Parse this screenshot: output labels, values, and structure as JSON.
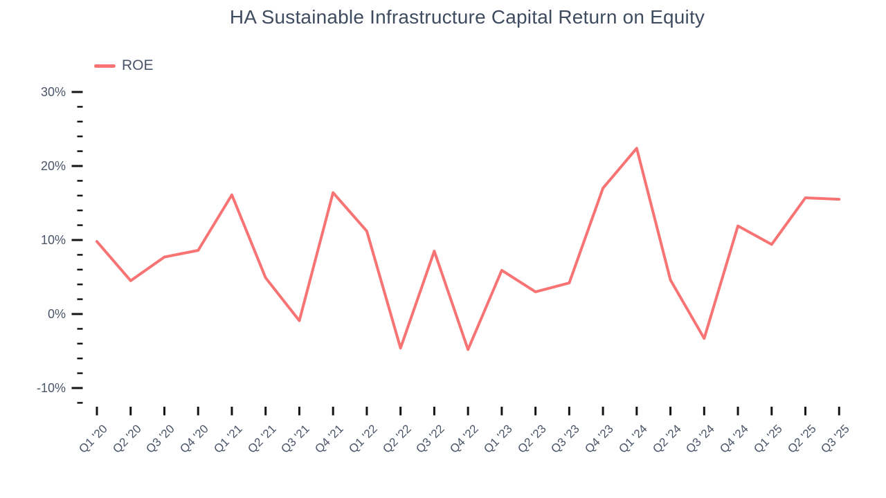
{
  "chart_data": {
    "type": "line",
    "title": "HA Sustainable Infrastructure Capital Return on Equity",
    "xlabel": "",
    "ylabel": "",
    "legend_position": "top-left",
    "grid": false,
    "categories": [
      "Q1 '20",
      "Q2 '20",
      "Q3 '20",
      "Q4 '20",
      "Q1 '21",
      "Q2 '21",
      "Q3 '21",
      "Q4 '21",
      "Q1 '22",
      "Q2 '22",
      "Q3 '22",
      "Q4 '22",
      "Q1 '23",
      "Q2 '23",
      "Q3 '23",
      "Q4 '23",
      "Q1 '24",
      "Q2 '24",
      "Q3 '24",
      "Q4 '24",
      "Q1 '25",
      "Q2 '25",
      "Q3 '25"
    ],
    "series": [
      {
        "name": "ROE",
        "values": [
          9.8,
          4.5,
          7.7,
          8.6,
          16.1,
          4.9,
          -0.9,
          16.4,
          11.2,
          -4.6,
          8.5,
          -4.8,
          5.9,
          3.0,
          4.2,
          17.0,
          22.4,
          4.6,
          -3.3,
          11.9,
          9.4,
          15.7,
          15.5
        ]
      }
    ],
    "ylim": [
      -12,
      30
    ],
    "y_major_ticks": [
      30,
      20,
      10,
      0,
      -10
    ],
    "y_minor_step": 2,
    "y_tick_suffix": "%",
    "colors": {
      "line": "#f87373",
      "tick": "#141414",
      "axis_label": "#4a5568",
      "title": "#3f4c5f"
    }
  }
}
